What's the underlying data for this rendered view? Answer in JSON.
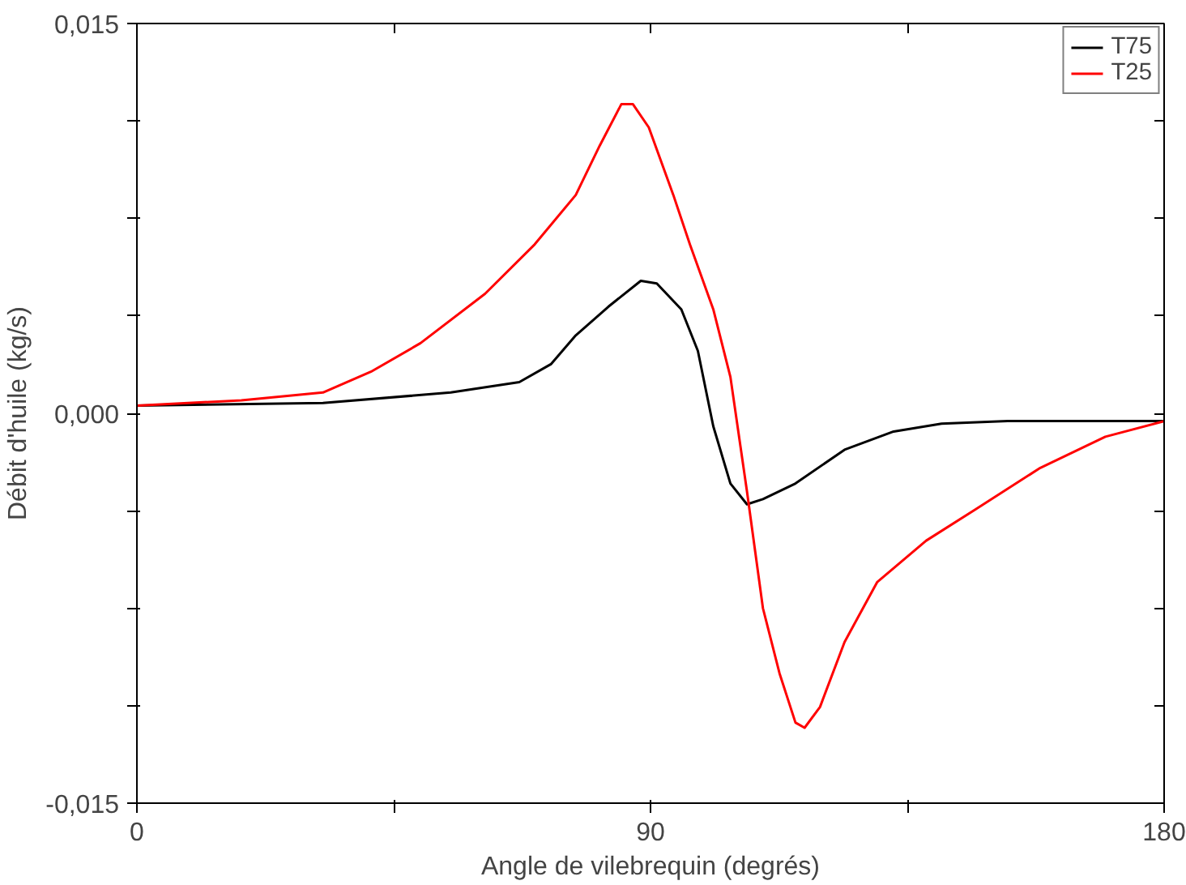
{
  "chart_data": {
    "type": "line",
    "xlabel": "Angle de vilebrequin (degrés)",
    "ylabel": "Débit d'huile (kg/s)",
    "xlim": [
      0,
      180
    ],
    "ylim": [
      -0.015,
      0.015
    ],
    "xticks": [
      0,
      {
        "value": 45,
        "label": null
      },
      90,
      {
        "value": 135,
        "label": null
      },
      180
    ],
    "yticks": [
      {
        "value": -0.015,
        "label": "-0,015"
      },
      {
        "value": -0.01125,
        "label": null
      },
      {
        "value": -0.0075,
        "label": null
      },
      {
        "value": -0.00375,
        "label": null
      },
      {
        "value": 0,
        "label": "0,000"
      },
      {
        "value": 0.00375,
        "label": null
      },
      {
        "value": 0.0075,
        "label": null
      },
      {
        "value": 0.01125,
        "label": null
      },
      {
        "value": 0.015,
        "label": "0,015"
      }
    ],
    "grid": false,
    "legend": "top right",
    "line_style": "solid",
    "series": [
      {
        "name": "T75",
        "color": "#000000",
        "x": [
          0,
          32.6,
          55,
          67,
          72.6,
          76.9,
          82.6,
          88.3,
          91.1,
          95.4,
          98.3,
          101,
          104,
          106.9,
          109.7,
          115.4,
          124,
          132.6,
          141,
          152.6,
          180
        ],
        "values": [
          0.0003,
          0.0004,
          0.0008,
          0.0012,
          0.0019,
          0.003,
          0.0041,
          0.0051,
          0.005,
          0.004,
          0.0024,
          -0.0005,
          -0.0027,
          -0.0035,
          -0.0033,
          -0.0027,
          -0.0014,
          -0.0007,
          -0.0004,
          -0.0003,
          -0.0003
        ]
      },
      {
        "name": "T25",
        "color": "#ff0000",
        "x": [
          0,
          18.3,
          32.6,
          41,
          49.7,
          61,
          69.7,
          76.9,
          81.1,
          84.9,
          86.9,
          89.7,
          94,
          96.9,
          101,
          104,
          106.9,
          109.7,
          112.6,
          115.4,
          117,
          119.7,
          124,
          129.7,
          138.3,
          146.9,
          158.3,
          169.7,
          180
        ],
        "values": [
          0.0003,
          0.0005,
          0.0008,
          0.0016,
          0.0027,
          0.0046,
          0.0065,
          0.0084,
          0.0103,
          0.0119,
          0.0119,
          0.011,
          0.0084,
          0.0065,
          0.004,
          0.0014,
          -0.003,
          -0.0075,
          -0.01,
          -0.0119,
          -0.0121,
          -0.0113,
          -0.0088,
          -0.0065,
          -0.0049,
          -0.0037,
          -0.0021,
          -0.0009,
          -0.0003
        ]
      }
    ]
  }
}
